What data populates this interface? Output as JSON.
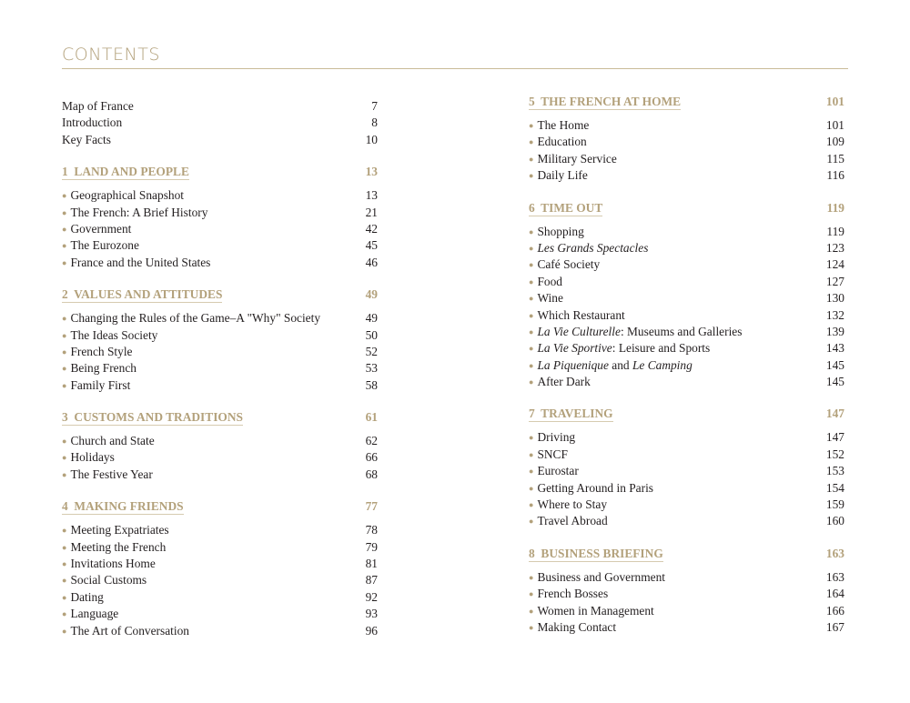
{
  "title": "CONTENTS",
  "accent_color": "#b3a17b",
  "front_matter": [
    {
      "label": "Map of France",
      "page": "7"
    },
    {
      "label": "Introduction",
      "page": "8"
    },
    {
      "label": "Key Facts",
      "page": "10"
    }
  ],
  "sections": [
    {
      "num": "1",
      "title": "LAND AND PEOPLE",
      "page": "13",
      "column": "left",
      "items": [
        {
          "parts": [
            {
              "t": "Geographical Snapshot"
            }
          ],
          "page": "13"
        },
        {
          "parts": [
            {
              "t": "The French: A Brief History"
            }
          ],
          "page": "21"
        },
        {
          "parts": [
            {
              "t": "Government"
            }
          ],
          "page": "42"
        },
        {
          "parts": [
            {
              "t": "The Eurozone"
            }
          ],
          "page": "45"
        },
        {
          "parts": [
            {
              "t": "France and the United States"
            }
          ],
          "page": "46"
        }
      ]
    },
    {
      "num": "2",
      "title": "VALUES AND ATTITUDES",
      "page": "49",
      "column": "left",
      "items": [
        {
          "parts": [
            {
              "t": "Changing the Rules of the Game–A \"Why\" Society"
            }
          ],
          "page": "49"
        },
        {
          "parts": [
            {
              "t": "The Ideas Society"
            }
          ],
          "page": "50"
        },
        {
          "parts": [
            {
              "t": "French Style"
            }
          ],
          "page": "52"
        },
        {
          "parts": [
            {
              "t": "Being French"
            }
          ],
          "page": "53"
        },
        {
          "parts": [
            {
              "t": "Family First"
            }
          ],
          "page": "58"
        }
      ]
    },
    {
      "num": "3",
      "title": "CUSTOMS AND TRADITIONS",
      "page": "61",
      "column": "left",
      "items": [
        {
          "parts": [
            {
              "t": "Church and State"
            }
          ],
          "page": "62"
        },
        {
          "parts": [
            {
              "t": "Holidays"
            }
          ],
          "page": "66"
        },
        {
          "parts": [
            {
              "t": "The Festive Year"
            }
          ],
          "page": "68"
        }
      ]
    },
    {
      "num": "4",
      "title": "MAKING FRIENDS",
      "page": "77",
      "column": "left",
      "items": [
        {
          "parts": [
            {
              "t": "Meeting Expatriates"
            }
          ],
          "page": "78"
        },
        {
          "parts": [
            {
              "t": "Meeting the French"
            }
          ],
          "page": "79"
        },
        {
          "parts": [
            {
              "t": "Invitations Home"
            }
          ],
          "page": "81"
        },
        {
          "parts": [
            {
              "t": "Social Customs"
            }
          ],
          "page": "87"
        },
        {
          "parts": [
            {
              "t": "Dating"
            }
          ],
          "page": "92"
        },
        {
          "parts": [
            {
              "t": "Language"
            }
          ],
          "page": "93"
        },
        {
          "parts": [
            {
              "t": "The Art of Conversation"
            }
          ],
          "page": "96"
        }
      ]
    },
    {
      "num": "5",
      "title": "THE FRENCH AT HOME",
      "page": "101",
      "column": "right",
      "items": [
        {
          "parts": [
            {
              "t": "The Home"
            }
          ],
          "page": "101"
        },
        {
          "parts": [
            {
              "t": "Education"
            }
          ],
          "page": "109"
        },
        {
          "parts": [
            {
              "t": "Military Service"
            }
          ],
          "page": "115"
        },
        {
          "parts": [
            {
              "t": "Daily Life"
            }
          ],
          "page": "116"
        }
      ]
    },
    {
      "num": "6",
      "title": "TIME OUT",
      "page": "119",
      "column": "right",
      "items": [
        {
          "parts": [
            {
              "t": "Shopping"
            }
          ],
          "page": "119"
        },
        {
          "parts": [
            {
              "t": "Les Grands Spectacles",
              "i": true
            }
          ],
          "page": "123"
        },
        {
          "parts": [
            {
              "t": "Café Society"
            }
          ],
          "page": "124"
        },
        {
          "parts": [
            {
              "t": "Food"
            }
          ],
          "page": "127"
        },
        {
          "parts": [
            {
              "t": "Wine"
            }
          ],
          "page": "130"
        },
        {
          "parts": [
            {
              "t": "Which Restaurant"
            }
          ],
          "page": "132"
        },
        {
          "parts": [
            {
              "t": "La Vie Culturelle",
              "i": true
            },
            {
              "t": ": Museums and Galleries"
            }
          ],
          "page": "139"
        },
        {
          "parts": [
            {
              "t": "La Vie Sportive",
              "i": true
            },
            {
              "t": ": Leisure and Sports"
            }
          ],
          "page": "143"
        },
        {
          "parts": [
            {
              "t": "La Piquenique",
              "i": true
            },
            {
              "t": " and "
            },
            {
              "t": "Le Camping",
              "i": true
            }
          ],
          "page": "145"
        },
        {
          "parts": [
            {
              "t": "After Dark"
            }
          ],
          "page": "145"
        }
      ]
    },
    {
      "num": "7",
      "title": "TRAVELING",
      "page": "147",
      "column": "right",
      "items": [
        {
          "parts": [
            {
              "t": "Driving"
            }
          ],
          "page": "147"
        },
        {
          "parts": [
            {
              "t": "SNCF"
            }
          ],
          "page": "152"
        },
        {
          "parts": [
            {
              "t": "Eurostar"
            }
          ],
          "page": "153"
        },
        {
          "parts": [
            {
              "t": "Getting Around in Paris"
            }
          ],
          "page": "154"
        },
        {
          "parts": [
            {
              "t": "Where to Stay"
            }
          ],
          "page": "159"
        },
        {
          "parts": [
            {
              "t": "Travel Abroad"
            }
          ],
          "page": "160"
        }
      ]
    },
    {
      "num": "8",
      "title": "BUSINESS BRIEFING",
      "page": "163",
      "column": "right",
      "items": [
        {
          "parts": [
            {
              "t": "Business and Government"
            }
          ],
          "page": "163"
        },
        {
          "parts": [
            {
              "t": "French Bosses"
            }
          ],
          "page": "164"
        },
        {
          "parts": [
            {
              "t": "Women in Management"
            }
          ],
          "page": "166"
        },
        {
          "parts": [
            {
              "t": "Making Contact"
            }
          ],
          "page": "167"
        }
      ]
    }
  ]
}
